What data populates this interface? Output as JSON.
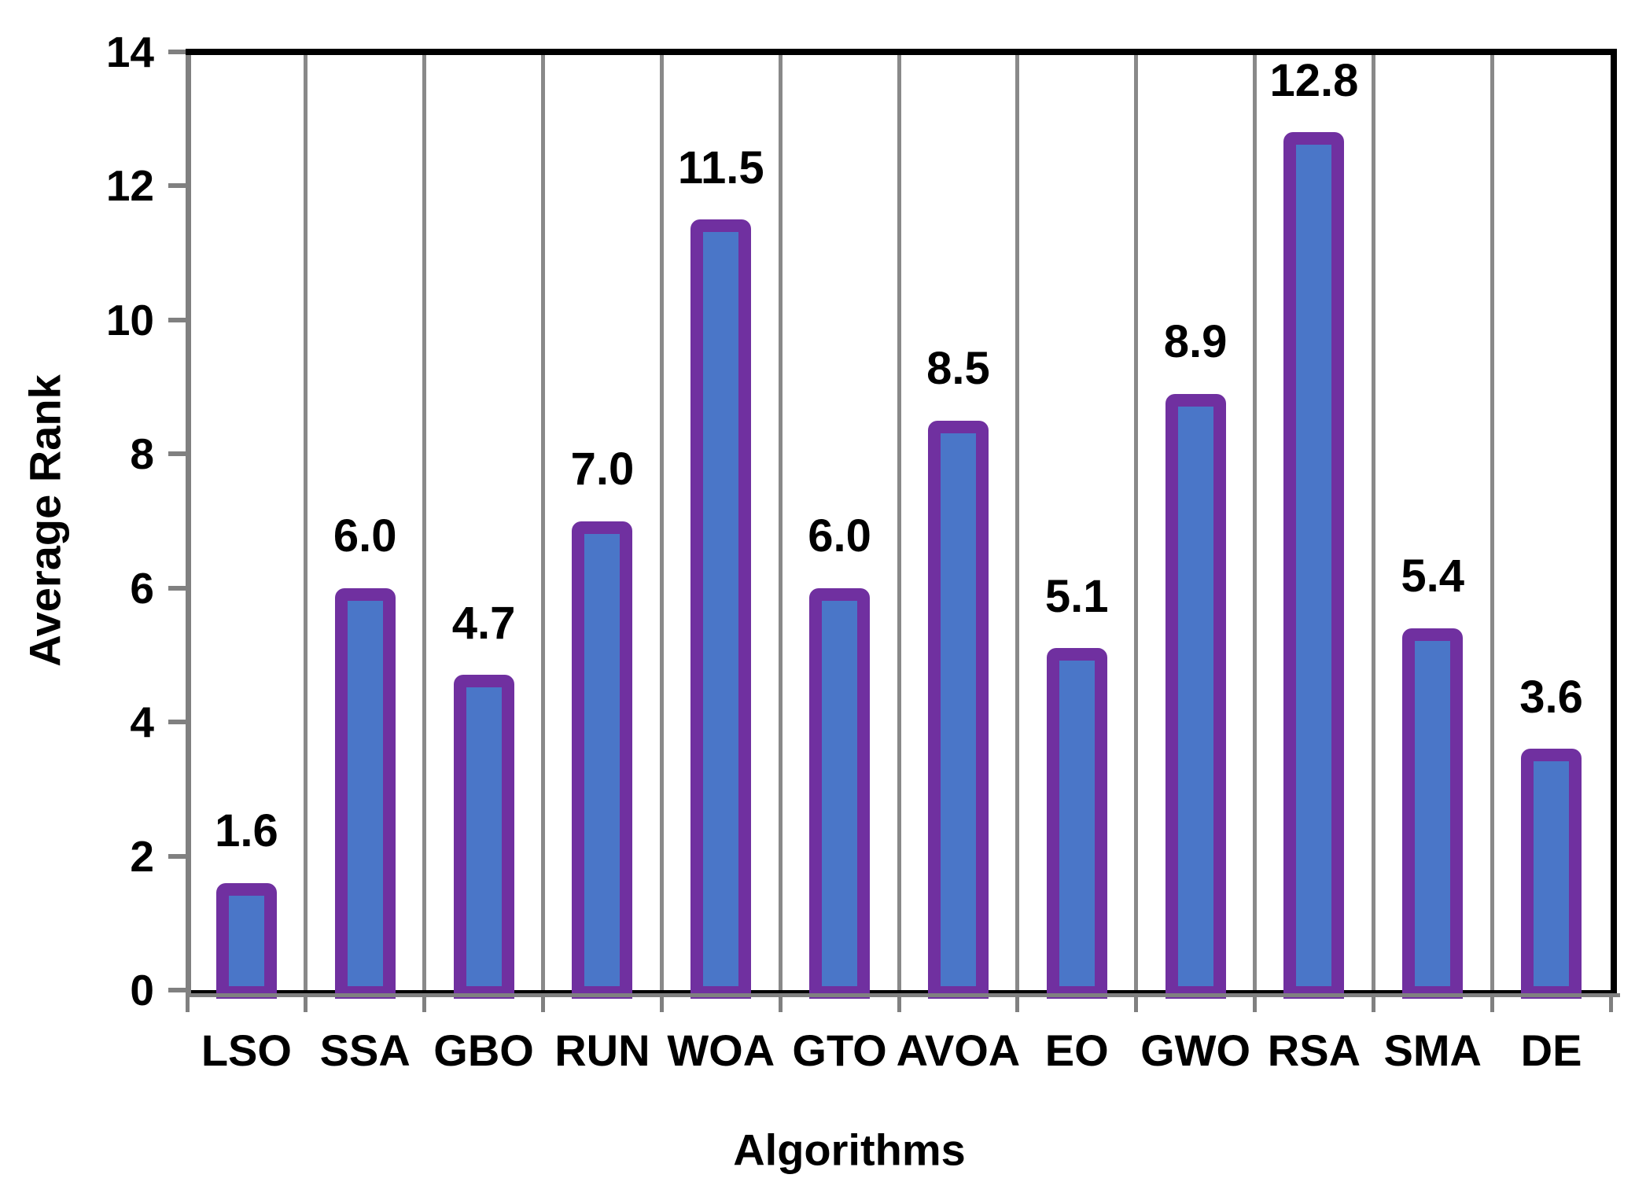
{
  "chart_data": {
    "type": "bar",
    "xlabel": "Algorithms",
    "ylabel": "Average Rank",
    "categories": [
      "LSO",
      "SSA",
      "GBO",
      "RUN",
      "WOA",
      "GTO",
      "AVOA",
      "EO",
      "GWO",
      "RSA",
      "SMA",
      "DE"
    ],
    "values": [
      1.6,
      6.0,
      4.7,
      7.0,
      11.5,
      6.0,
      8.5,
      5.1,
      8.9,
      12.8,
      5.4,
      3.6
    ],
    "data_labels": [
      "1.6",
      "6.0",
      "4.7",
      "7.0",
      "11.5",
      "6.0",
      "8.5",
      "5.1",
      "8.9",
      "12.8",
      "5.4",
      "3.6"
    ],
    "ylim": [
      0,
      14
    ],
    "ytick_step": 2,
    "ytick_labels": [
      "0",
      "2",
      "4",
      "6",
      "8",
      "10",
      "12",
      "14"
    ],
    "grid": "vertical lines at category boundaries",
    "legend_position": "none",
    "colors": {
      "bar_fill": "#4A76C8",
      "bar_border": "#7030A0",
      "gridline": "#898989",
      "category_axis": "#808080",
      "plot_border": "#000000",
      "text": "#000000",
      "background": "#ffffff"
    }
  }
}
